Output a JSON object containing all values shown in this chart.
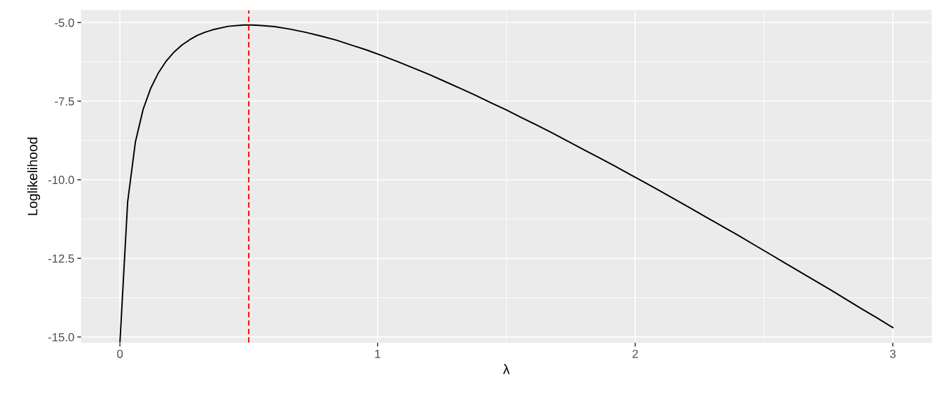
{
  "chart_data": {
    "type": "line",
    "xlabel": "λ",
    "ylabel": "Loglikelihood",
    "x": [
      0,
      0.03,
      0.06,
      0.09,
      0.12,
      0.15,
      0.18,
      0.21,
      0.24,
      0.27,
      0.3,
      0.33,
      0.36,
      0.42,
      0.48,
      0.51,
      0.54,
      0.6,
      0.66,
      0.72,
      0.78,
      0.84,
      0.9,
      0.96,
      1.02,
      1.08,
      1.14,
      1.2,
      1.26,
      1.32,
      1.38,
      1.44,
      1.5,
      1.56,
      1.62,
      1.68,
      1.74,
      1.8,
      1.86,
      1.92,
      1.98,
      2.04,
      2.1,
      2.16,
      2.22,
      2.28,
      2.34,
      2.4,
      2.46,
      2.52,
      2.58,
      2.64,
      2.7,
      2.76,
      2.82,
      2.88,
      2.94,
      3.0
    ],
    "series": [
      {
        "color": "#000000",
        "values": [
          -15.18,
          -10.7,
          -8.8,
          -7.76,
          -7.08,
          -6.59,
          -6.22,
          -5.94,
          -5.72,
          -5.55,
          -5.41,
          -5.31,
          -5.23,
          -5.12,
          -5.08,
          -5.08,
          -5.09,
          -5.13,
          -5.21,
          -5.31,
          -5.43,
          -5.56,
          -5.72,
          -5.88,
          -6.06,
          -6.25,
          -6.45,
          -6.65,
          -6.87,
          -7.09,
          -7.31,
          -7.55,
          -7.78,
          -8.03,
          -8.27,
          -8.52,
          -8.78,
          -9.04,
          -9.3,
          -9.56,
          -9.83,
          -10.1,
          -10.37,
          -10.65,
          -10.93,
          -11.21,
          -11.49,
          -11.77,
          -12.06,
          -12.35,
          -12.64,
          -12.93,
          -13.22,
          -13.51,
          -13.81,
          -14.11,
          -14.4,
          -14.7
        ]
      }
    ],
    "xlim": [
      -0.15,
      3.15
    ],
    "ylim": [
      -15.18,
      -4.61
    ],
    "xticks": [
      0,
      1,
      2,
      3
    ],
    "yticks": [
      {
        "value": -15,
        "label": "-15.0"
      },
      {
        "value": -12.5,
        "label": "-12.5"
      },
      {
        "value": -10,
        "label": "-10.0"
      },
      {
        "value": -7.5,
        "label": "-7.5"
      },
      {
        "value": -5,
        "label": "-5.0"
      }
    ],
    "grid": true,
    "ref_lines": [
      {
        "axis": "x",
        "value": 0.5,
        "color": "#ff0000",
        "line_style": "dashed"
      }
    ]
  }
}
